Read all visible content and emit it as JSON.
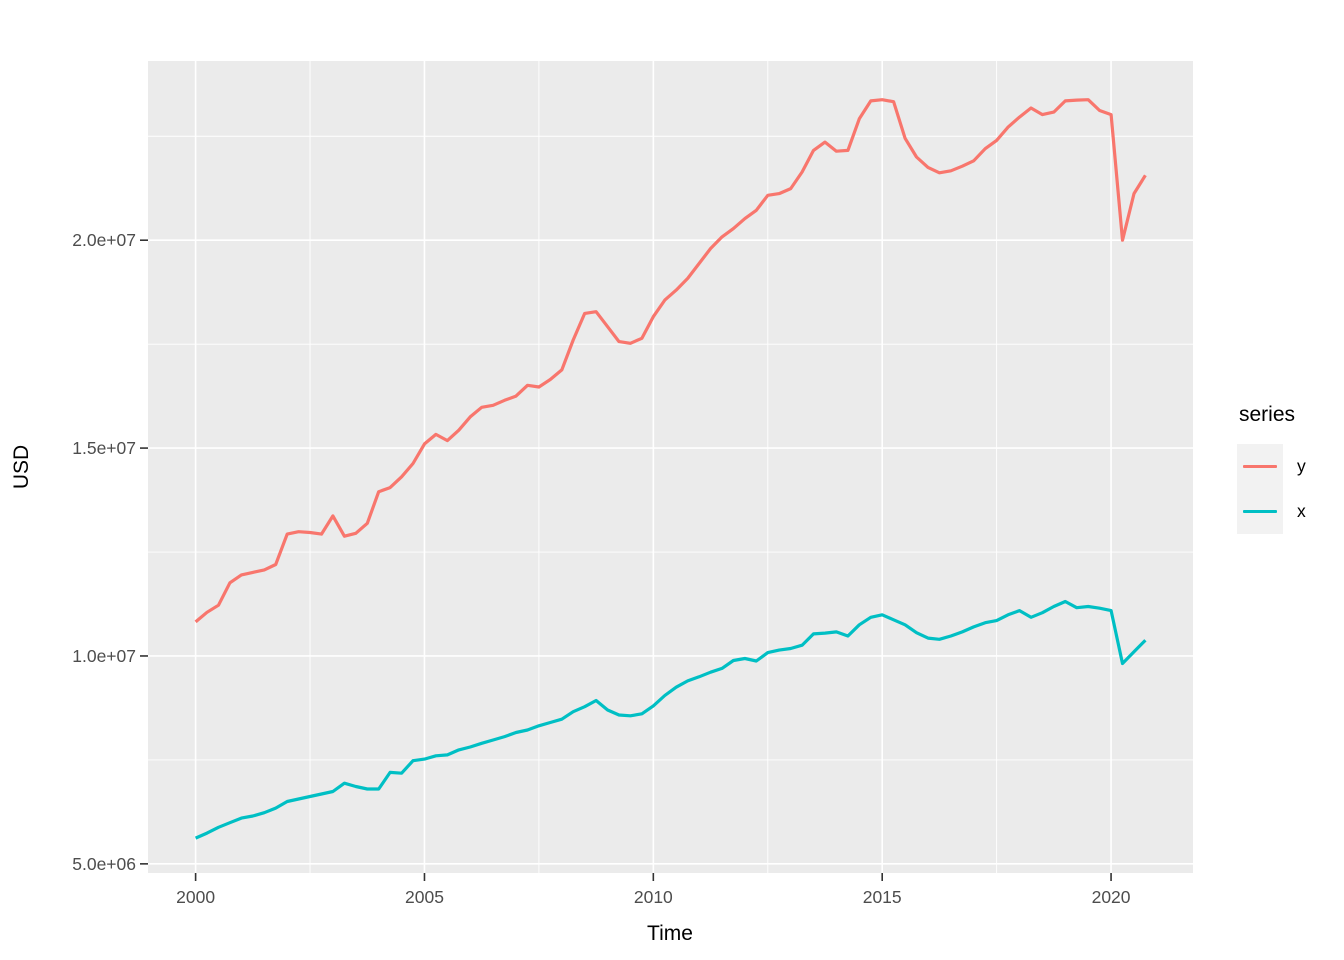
{
  "styles": {
    "panel_bg": "#EBEBEB",
    "grid_color": "#FFFFFF",
    "axis_text_color": "#4D4D4D",
    "axis_title_color": "#000000",
    "tick_mark_color": "#333333",
    "legend_key_bg": "#F2F2F2"
  },
  "chart_data": {
    "type": "line",
    "title": "",
    "xlabel": "Time",
    "ylabel": "USD",
    "legend_title": "series",
    "legend_position": "right",
    "grid": true,
    "xlim": [
      1998.96,
      2021.79
    ],
    "ylim": [
      4780000,
      24310000
    ],
    "x_ticks": {
      "values": [
        2000,
        2005,
        2010,
        2015,
        2020
      ],
      "labels": [
        "2000",
        "2005",
        "2010",
        "2015",
        "2020"
      ]
    },
    "x_minor_ticks": [
      2002.5,
      2007.5,
      2012.5,
      2017.5
    ],
    "y_ticks": {
      "values": [
        5000000,
        10000000,
        15000000,
        20000000
      ],
      "labels": [
        "5.0e+06",
        "1.0e+07",
        "1.5e+07",
        "2.0e+07"
      ]
    },
    "y_minor_ticks": [
      7500000,
      12500000,
      17500000,
      22500000
    ],
    "x": [
      2000.0,
      2000.25,
      2000.5,
      2000.75,
      2001.0,
      2001.25,
      2001.5,
      2001.75,
      2002.0,
      2002.25,
      2002.5,
      2002.75,
      2003.0,
      2003.25,
      2003.5,
      2003.75,
      2004.0,
      2004.25,
      2004.5,
      2004.75,
      2005.0,
      2005.25,
      2005.5,
      2005.75,
      2006.0,
      2006.25,
      2006.5,
      2006.75,
      2007.0,
      2007.25,
      2007.5,
      2007.75,
      2008.0,
      2008.25,
      2008.5,
      2008.75,
      2009.0,
      2009.25,
      2009.5,
      2009.75,
      2010.0,
      2010.25,
      2010.5,
      2010.75,
      2011.0,
      2011.25,
      2011.5,
      2011.75,
      2012.0,
      2012.25,
      2012.5,
      2012.75,
      2013.0,
      2013.25,
      2013.5,
      2013.75,
      2014.0,
      2014.25,
      2014.5,
      2014.75,
      2015.0,
      2015.25,
      2015.5,
      2015.75,
      2016.0,
      2016.25,
      2016.5,
      2016.75,
      2017.0,
      2017.25,
      2017.5,
      2017.75,
      2018.0,
      2018.25,
      2018.5,
      2018.75,
      2019.0,
      2019.25,
      2019.5,
      2019.75,
      2020.0,
      2020.25,
      2020.5,
      2020.75
    ],
    "series": [
      {
        "name": "y",
        "color": "#F8766D",
        "values": [
          10820000,
          11050000,
          11220000,
          11760000,
          11950000,
          12010000,
          12070000,
          12200000,
          12930000,
          12990000,
          12970000,
          12930000,
          13370000,
          12880000,
          12950000,
          13190000,
          13950000,
          14050000,
          14310000,
          14630000,
          15100000,
          15330000,
          15180000,
          15430000,
          15750000,
          15980000,
          16030000,
          16150000,
          16250000,
          16510000,
          16470000,
          16650000,
          16880000,
          17600000,
          18240000,
          18280000,
          17920000,
          17560000,
          17520000,
          17640000,
          18160000,
          18560000,
          18800000,
          19080000,
          19440000,
          19800000,
          20080000,
          20280000,
          20520000,
          20720000,
          21080000,
          21120000,
          21240000,
          21640000,
          22160000,
          22360000,
          22140000,
          22160000,
          22920000,
          23350000,
          23380000,
          23330000,
          22450000,
          22000000,
          21750000,
          21620000,
          21670000,
          21780000,
          21910000,
          22200000,
          22400000,
          22720000,
          22960000,
          23180000,
          23020000,
          23080000,
          23350000,
          23370000,
          23380000,
          23120000,
          23020000,
          20000000,
          21120000,
          21560000
        ]
      },
      {
        "name": "x",
        "color": "#00BFC4",
        "values": [
          5620000,
          5740000,
          5880000,
          5990000,
          6100000,
          6150000,
          6230000,
          6340000,
          6500000,
          6560000,
          6620000,
          6680000,
          6740000,
          6940000,
          6860000,
          6800000,
          6800000,
          7200000,
          7180000,
          7480000,
          7520000,
          7600000,
          7620000,
          7740000,
          7810000,
          7900000,
          7980000,
          8060000,
          8160000,
          8220000,
          8320000,
          8400000,
          8480000,
          8660000,
          8780000,
          8930000,
          8700000,
          8580000,
          8560000,
          8610000,
          8800000,
          9050000,
          9250000,
          9400000,
          9500000,
          9610000,
          9700000,
          9890000,
          9940000,
          9880000,
          10080000,
          10140000,
          10180000,
          10260000,
          10530000,
          10550000,
          10580000,
          10480000,
          10750000,
          10930000,
          10990000,
          10870000,
          10750000,
          10560000,
          10430000,
          10400000,
          10480000,
          10580000,
          10700000,
          10800000,
          10850000,
          10990000,
          11090000,
          10930000,
          11040000,
          11190000,
          11310000,
          11160000,
          11190000,
          11150000,
          11090000,
          9820000,
          10100000,
          10380000
        ]
      }
    ]
  }
}
